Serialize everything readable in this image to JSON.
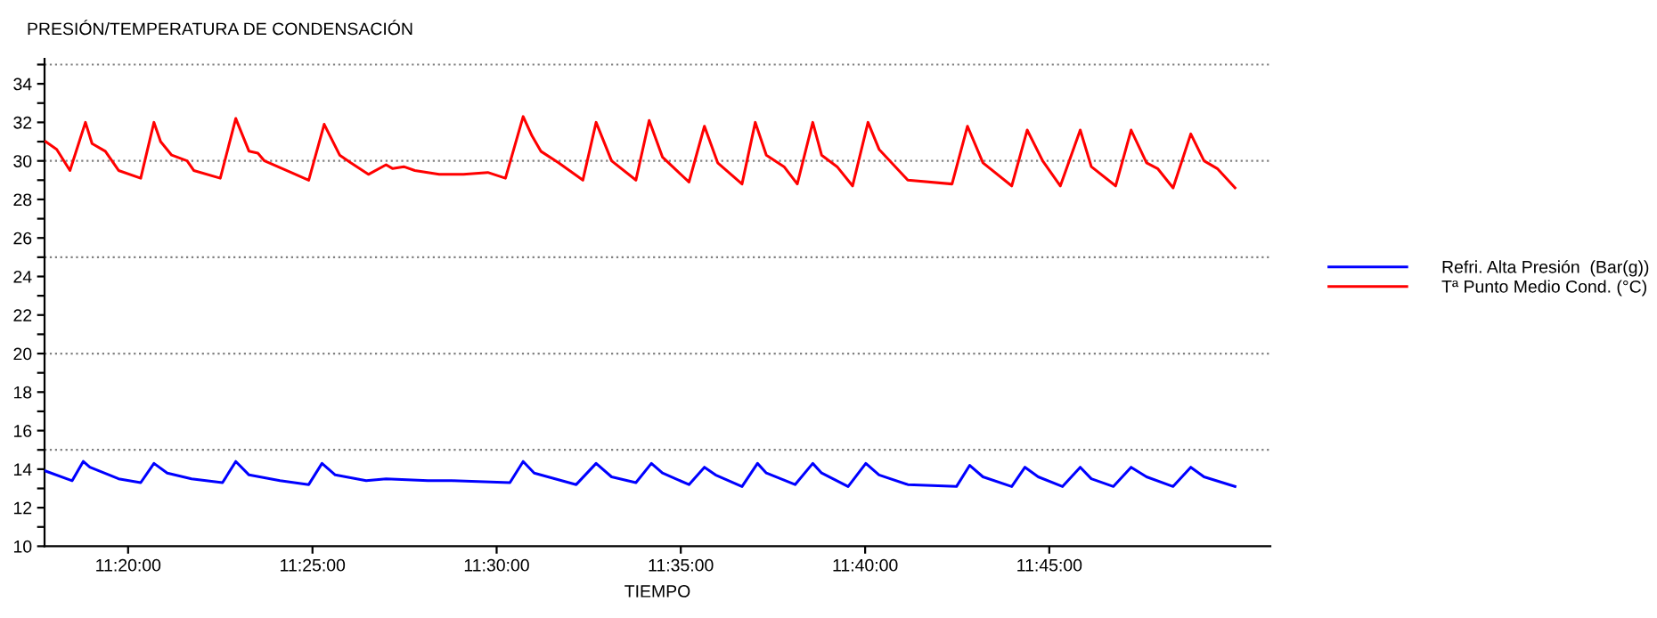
{
  "chart_data": {
    "type": "line",
    "title": "PRESIÓN/TEMPERATURA DE CONDENSACIÓN",
    "xlabel": "TIEMPO",
    "xlim": [
      11.2955,
      11.85
    ],
    "ylim": [
      10,
      35.3
    ],
    "xticks": [
      {
        "value": 11.3333,
        "label": "11:20:00"
      },
      {
        "value": 11.4167,
        "label": "11:25:00"
      },
      {
        "value": 11.5,
        "label": "11:30:00"
      },
      {
        "value": 11.5833,
        "label": "11:35:00"
      },
      {
        "value": 11.6667,
        "label": "11:40:00"
      },
      {
        "value": 11.75,
        "label": "11:45:00"
      }
    ],
    "yticks": [
      10,
      {
        "value": 11,
        "label": null
      },
      12,
      {
        "value": 13,
        "label": null
      },
      14,
      {
        "value": 15,
        "label": null
      },
      16,
      {
        "value": 17,
        "label": null
      },
      18,
      {
        "value": 19,
        "label": null
      },
      20,
      {
        "value": 21,
        "label": null
      },
      22,
      {
        "value": 23,
        "label": null
      },
      24,
      {
        "value": 25,
        "label": null
      },
      26,
      {
        "value": 27,
        "label": null
      },
      28,
      {
        "value": 29,
        "label": null
      },
      30,
      {
        "value": 31,
        "label": null
      },
      32,
      {
        "value": 33,
        "label": null
      },
      34,
      {
        "value": 35,
        "label": null
      }
    ],
    "ref_lines": [
      {
        "axis": "y",
        "value": 15,
        "color": "#808080",
        "line_style": "dotted"
      },
      {
        "axis": "y",
        "value": 20,
        "color": "#808080",
        "line_style": "dotted"
      },
      {
        "axis": "y",
        "value": 25,
        "color": "#808080",
        "line_style": "dotted"
      },
      {
        "axis": "y",
        "value": 30,
        "color": "#808080",
        "line_style": "dotted"
      },
      {
        "axis": "y",
        "value": 35,
        "color": "#808080",
        "line_style": "dotted"
      }
    ],
    "grid": false,
    "legend": "right",
    "marker": "none",
    "line_style": "solid",
    "series": [
      {
        "name": "Refri. Alta Presión  (Bar(g))",
        "color": "#0000ff",
        "x": [
          11.296,
          11.308,
          11.313,
          11.316,
          11.329,
          11.339,
          11.345,
          11.351,
          11.362,
          11.376,
          11.382,
          11.388,
          11.402,
          11.415,
          11.421,
          11.427,
          11.441,
          11.45,
          11.469,
          11.48,
          11.506,
          11.512,
          11.517,
          11.536,
          11.545,
          11.552,
          11.563,
          11.57,
          11.575,
          11.587,
          11.594,
          11.599,
          11.611,
          11.618,
          11.622,
          11.635,
          11.643,
          11.647,
          11.659,
          11.667,
          11.673,
          11.686,
          11.708,
          11.714,
          11.72,
          11.733,
          11.739,
          11.745,
          11.756,
          11.764,
          11.769,
          11.779,
          11.787,
          11.794,
          11.806,
          11.814,
          11.82,
          11.834
        ],
        "values": [
          13.9,
          13.4,
          14.4,
          14.1,
          13.5,
          13.3,
          14.3,
          13.8,
          13.5,
          13.3,
          14.4,
          13.7,
          13.4,
          13.2,
          14.3,
          13.7,
          13.4,
          13.5,
          13.4,
          13.4,
          13.3,
          14.4,
          13.8,
          13.2,
          14.3,
          13.6,
          13.3,
          14.3,
          13.8,
          13.2,
          14.1,
          13.7,
          13.1,
          14.3,
          13.8,
          13.2,
          14.3,
          13.8,
          13.1,
          14.3,
          13.7,
          13.2,
          13.1,
          14.2,
          13.6,
          13.1,
          14.1,
          13.6,
          13.1,
          14.1,
          13.5,
          13.1,
          14.1,
          13.6,
          13.1,
          14.1,
          13.6,
          13.1
        ]
      },
      {
        "name": "Tª Punto Medio Cond. (°C)",
        "color": "#ff0000",
        "x": [
          11.296,
          11.301,
          11.307,
          11.314,
          11.317,
          11.323,
          11.329,
          11.339,
          11.345,
          11.348,
          11.353,
          11.36,
          11.363,
          11.375,
          11.382,
          11.388,
          11.392,
          11.395,
          11.407,
          11.415,
          11.422,
          11.429,
          11.434,
          11.442,
          11.45,
          11.453,
          11.458,
          11.463,
          11.474,
          11.485,
          11.496,
          11.504,
          11.512,
          11.516,
          11.52,
          11.528,
          11.539,
          11.545,
          11.552,
          11.563,
          11.569,
          11.575,
          11.587,
          11.594,
          11.6,
          11.611,
          11.617,
          11.622,
          11.63,
          11.636,
          11.643,
          11.647,
          11.654,
          11.661,
          11.668,
          11.673,
          11.686,
          11.706,
          11.713,
          11.72,
          11.733,
          11.74,
          11.747,
          11.755,
          11.764,
          11.769,
          11.78,
          11.787,
          11.794,
          11.799,
          11.806,
          11.814,
          11.82,
          11.826,
          11.834
        ],
        "values": [
          31.0,
          30.6,
          29.5,
          32.0,
          30.9,
          30.5,
          29.5,
          29.1,
          32.0,
          31.0,
          30.3,
          30.0,
          29.5,
          29.1,
          32.2,
          30.5,
          30.4,
          30.0,
          29.4,
          29.0,
          31.9,
          30.3,
          29.9,
          29.3,
          29.8,
          29.6,
          29.7,
          29.5,
          29.3,
          29.3,
          29.4,
          29.1,
          32.3,
          31.3,
          30.5,
          29.9,
          29.0,
          32.0,
          30.0,
          29.0,
          32.1,
          30.2,
          28.9,
          31.8,
          29.9,
          28.8,
          32.0,
          30.3,
          29.7,
          28.8,
          32.0,
          30.3,
          29.7,
          28.7,
          32.0,
          30.6,
          29.0,
          28.8,
          31.8,
          29.9,
          28.7,
          31.6,
          30.0,
          28.7,
          31.6,
          29.7,
          28.7,
          31.6,
          29.9,
          29.6,
          28.6,
          31.4,
          30.0,
          29.6,
          28.6
        ]
      }
    ]
  }
}
